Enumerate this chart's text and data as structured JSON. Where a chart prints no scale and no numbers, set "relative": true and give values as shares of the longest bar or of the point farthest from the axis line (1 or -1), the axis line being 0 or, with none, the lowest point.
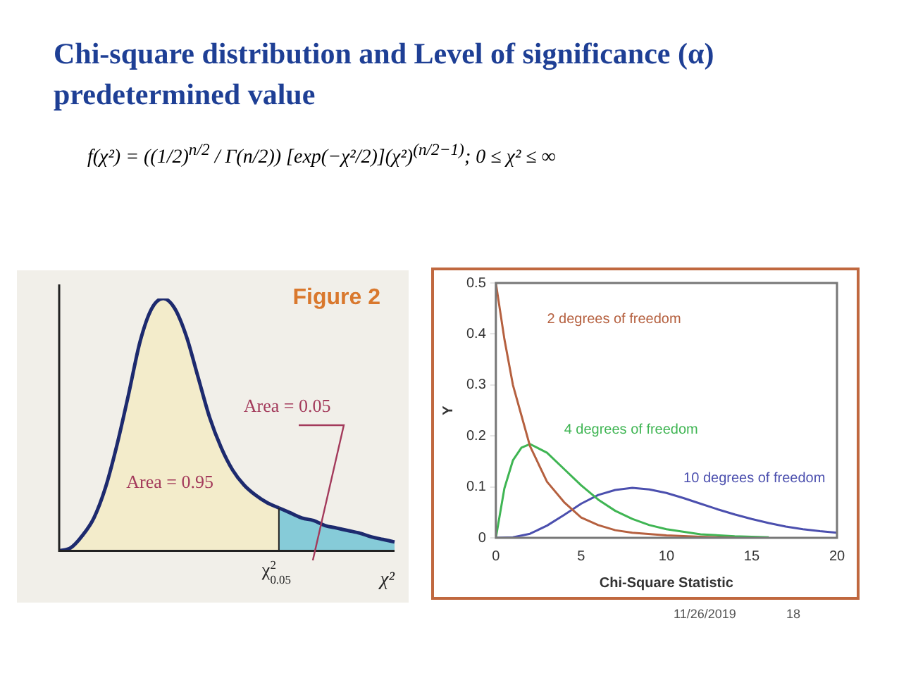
{
  "chart_data": [
    {
      "type": "other",
      "title": "Chi-square distribution and Level of significance (α) predetermined value",
      "annotations": [
        "f(χ²) = ((1/2)$^{n/2}$ / Γ(n/2)) [exp(−χ²/2)](χ²)$^{(n/2−1)}$; 0 ≤ χ² ≤ ∞",
        "11/26/2019",
        "18"
      ]
    },
    {
      "type": "area",
      "relative": true,
      "title": "Figure 2",
      "xlabel": "χ²",
      "annotations": [
        "Area = 0.95",
        "Area = 0.05",
        "χ$^{2}$$_{0.05}$"
      ],
      "categories": [
        null,
        null,
        null,
        null,
        null,
        null,
        null,
        null,
        null,
        null,
        null,
        null,
        null,
        null,
        null,
        null,
        null,
        null,
        null,
        null,
        null,
        null,
        null,
        null,
        null,
        null,
        null,
        null,
        null,
        null
      ],
      "series": [
        {
          "color": "#f3eccb",
          "values": [
            0,
            0.012,
            0.06,
            0.13,
            0.25,
            0.42,
            0.62,
            0.83,
            0.96,
            1,
            0.96,
            0.85,
            0.69,
            0.53,
            0.41,
            0.32,
            0.26,
            0.22,
            0.19,
            0.17,
            null,
            null,
            null,
            null,
            null,
            null,
            null,
            null,
            null,
            null
          ]
        },
        {
          "color": "#86cbd8",
          "values": [
            null,
            null,
            null,
            null,
            null,
            null,
            null,
            null,
            null,
            null,
            null,
            null,
            null,
            null,
            null,
            null,
            null,
            null,
            null,
            0.17,
            0.15,
            0.13,
            0.12,
            0.1,
            0.09,
            0.08,
            0.07,
            0.055,
            0.045,
            0.035
          ]
        }
      ]
    },
    {
      "type": "line",
      "xlabel": "Chi-Square Statistic",
      "ylabel": "Y",
      "xlim": [
        0,
        20
      ],
      "xticks": [
        0,
        5,
        10,
        15,
        20
      ],
      "ylim": [
        0,
        0.5
      ],
      "yticks": [
        0,
        0.1,
        0.2,
        0.3,
        0.4,
        0.5
      ],
      "grid": false,
      "legend": false,
      "marker": "none",
      "series": [
        {
          "name": "2 degrees of freedom",
          "color": "#b5603f",
          "x": [
            0,
            0.5,
            1,
            1.5,
            2,
            3,
            4,
            5,
            6,
            7,
            8,
            10,
            12,
            14
          ],
          "values": [
            0.5,
            0.39,
            0.3,
            0.24,
            0.18,
            0.11,
            0.07,
            0.04,
            0.025,
            0.015,
            0.01,
            0.005,
            0.002,
            0
          ]
        },
        {
          "name": "4 degrees of freedom",
          "color": "#3fb553",
          "x": [
            0,
            0.5,
            1,
            1.5,
            2,
            3,
            4,
            5,
            6,
            7,
            8,
            9,
            10,
            12,
            14,
            16
          ],
          "values": [
            0,
            0.097,
            0.152,
            0.177,
            0.184,
            0.167,
            0.135,
            0.103,
            0.075,
            0.053,
            0.037,
            0.025,
            0.017,
            0.007,
            0.003,
            0.001
          ]
        },
        {
          "name": "10 degrees of freedom",
          "color": "#4b4fae",
          "x": [
            0,
            1,
            2,
            3,
            4,
            5,
            6,
            7,
            8,
            9,
            10,
            11,
            12,
            13,
            14,
            15,
            16,
            17,
            18,
            19,
            20
          ],
          "values": [
            0,
            0.001,
            0.008,
            0.024,
            0.045,
            0.067,
            0.084,
            0.094,
            0.098,
            0.095,
            0.088,
            0.078,
            0.067,
            0.056,
            0.046,
            0.037,
            0.029,
            0.022,
            0.017,
            0.013,
            0.01
          ]
        }
      ]
    }
  ]
}
